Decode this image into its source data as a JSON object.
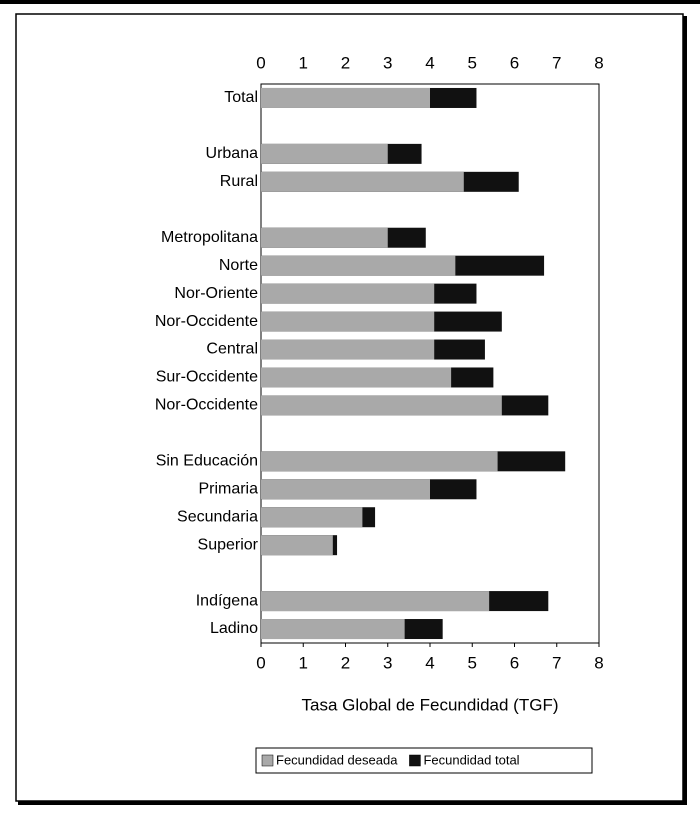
{
  "chart_data": {
    "type": "bar",
    "orientation": "horizontal",
    "overlap": true,
    "x_label": "Tasa Global de Fecundidad (TGF)",
    "categories": [
      "Total",
      null,
      "Urbana",
      "Rural",
      null,
      "Metropolitana",
      "Norte",
      "Nor-Oriente",
      "Nor-Occidente",
      "Central",
      "Sur-Occidente",
      "Nor-Occidente",
      null,
      "Sin Educación",
      "Primaria",
      "Secundaria",
      "Superior",
      null,
      "Indígena",
      "Ladino"
    ],
    "series": [
      {
        "name": "Fecundidad total",
        "color": "#111111",
        "values": [
          5.1,
          null,
          3.8,
          6.1,
          null,
          3.9,
          6.7,
          5.1,
          5.7,
          5.3,
          5.5,
          6.8,
          null,
          7.2,
          5.1,
          2.7,
          1.8,
          null,
          6.8,
          4.3
        ]
      },
      {
        "name": "Fecundidad deseada",
        "color": "#a9a9a9",
        "values": [
          4.0,
          null,
          3.0,
          4.8,
          null,
          3.0,
          4.6,
          4.1,
          4.1,
          4.1,
          4.5,
          5.7,
          null,
          5.6,
          4.0,
          2.4,
          1.7,
          null,
          5.4,
          3.4
        ]
      }
    ],
    "legend_order": [
      1,
      0
    ],
    "xlim": [
      0,
      8
    ],
    "xticks": [
      0,
      1,
      2,
      3,
      4,
      5,
      6,
      7,
      8
    ]
  }
}
